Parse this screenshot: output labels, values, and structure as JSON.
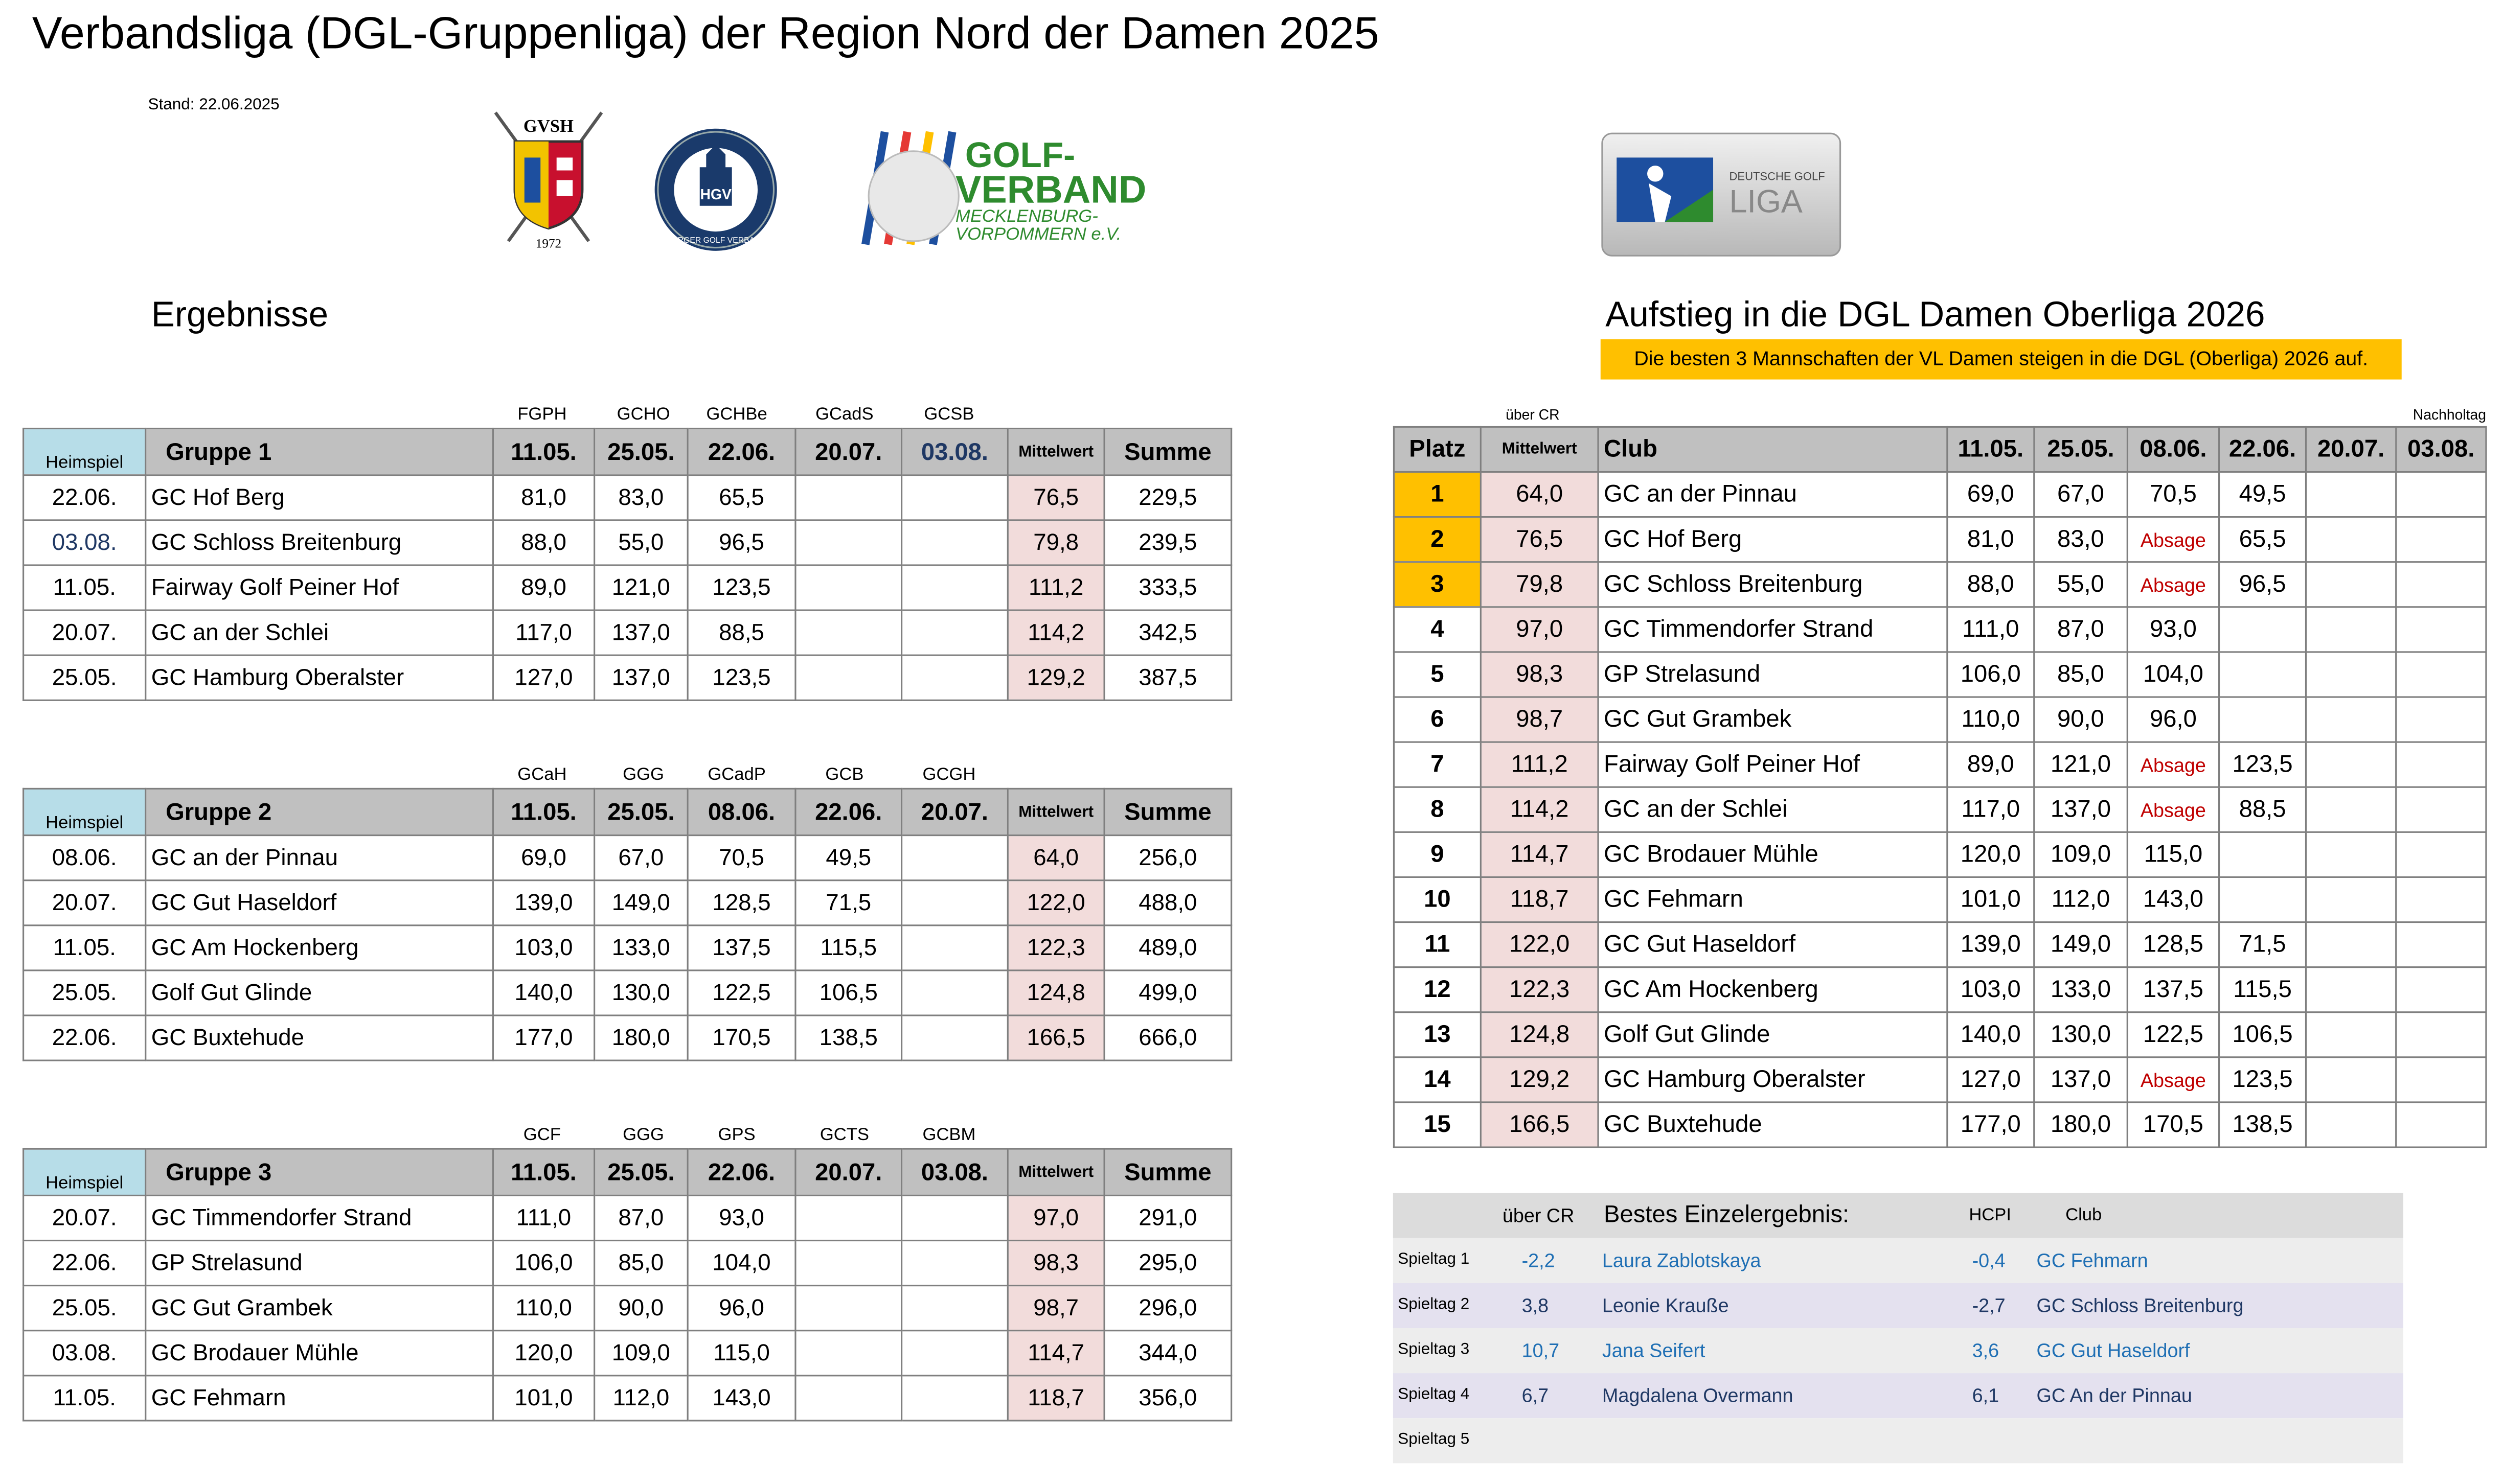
{
  "title": "Verbandsliga (DGL-Gruppenliga) der Region Nord der Damen 2025",
  "stand": "Stand: 22.06.2025",
  "logos": {
    "gvsh_text": "GVSH",
    "gvsh_year": "1972",
    "hgv_text": "HAMBURGER GOLF VERBAND E.V.",
    "hgv_mono": "HGV",
    "mv_line1": "GOLF-",
    "mv_line2": "VERBAND",
    "mv_line3": "MECKLENBURG-",
    "mv_line4": "VORPOMMERN e.V.",
    "dgl_line1": "DEUTSCHE GOLF",
    "dgl_line2": "LIGA"
  },
  "ergebnisse_title": "Ergebnisse",
  "groups": [
    {
      "codes": [
        "FGPH",
        "GCHO",
        "GCHBe",
        "GCadS",
        "GCSB"
      ],
      "header": {
        "heim": "Heimspiel",
        "name": "Gruppe 1",
        "dates": [
          "11.05.",
          "25.05.",
          "22.06.",
          "20.07.",
          "03.08."
        ],
        "mw": "Mittelwert",
        "sum": "Summe"
      },
      "rows": [
        {
          "date": "22.06.",
          "club": "GC Hof Berg",
          "v": [
            "81,0",
            "83,0",
            "65,5",
            "",
            ""
          ],
          "mw": "76,5",
          "sum": "229,5"
        },
        {
          "date": "03.08.",
          "club": "GC Schloss Breitenburg",
          "v": [
            "88,0",
            "55,0",
            "96,5",
            "",
            ""
          ],
          "mw": "79,8",
          "sum": "239,5"
        },
        {
          "date": "11.05.",
          "club": "Fairway Golf Peiner Hof",
          "v": [
            "89,0",
            "121,0",
            "123,5",
            "",
            ""
          ],
          "mw": "111,2",
          "sum": "333,5"
        },
        {
          "date": "20.07.",
          "club": "GC an der Schlei",
          "v": [
            "117,0",
            "137,0",
            "88,5",
            "",
            ""
          ],
          "mw": "114,2",
          "sum": "342,5"
        },
        {
          "date": "25.05.",
          "club": "GC Hamburg Oberalster",
          "v": [
            "127,0",
            "137,0",
            "123,5",
            "",
            ""
          ],
          "mw": "129,2",
          "sum": "387,5"
        }
      ]
    },
    {
      "codes": [
        "GCaH",
        "GGG",
        "GCadP",
        "GCB",
        "GCGH"
      ],
      "header": {
        "heim": "Heimspiel",
        "name": "Gruppe 2",
        "dates": [
          "11.05.",
          "25.05.",
          "08.06.",
          "22.06.",
          "20.07."
        ],
        "mw": "Mittelwert",
        "sum": "Summe"
      },
      "rows": [
        {
          "date": "08.06.",
          "club": "GC an der Pinnau",
          "v": [
            "69,0",
            "67,0",
            "70,5",
            "49,5",
            ""
          ],
          "mw": "64,0",
          "sum": "256,0"
        },
        {
          "date": "20.07.",
          "club": "GC Gut Haseldorf",
          "v": [
            "139,0",
            "149,0",
            "128,5",
            "71,5",
            ""
          ],
          "mw": "122,0",
          "sum": "488,0"
        },
        {
          "date": "11.05.",
          "club": "GC Am Hockenberg",
          "v": [
            "103,0",
            "133,0",
            "137,5",
            "115,5",
            ""
          ],
          "mw": "122,3",
          "sum": "489,0"
        },
        {
          "date": "25.05.",
          "club": "Golf Gut Glinde",
          "v": [
            "140,0",
            "130,0",
            "122,5",
            "106,5",
            ""
          ],
          "mw": "124,8",
          "sum": "499,0"
        },
        {
          "date": "22.06.",
          "club": "GC Buxtehude",
          "v": [
            "177,0",
            "180,0",
            "170,5",
            "138,5",
            ""
          ],
          "mw": "166,5",
          "sum": "666,0"
        }
      ]
    },
    {
      "codes": [
        "GCF",
        "GGG",
        "GPS",
        "GCTS",
        "GCBM"
      ],
      "header": {
        "heim": "Heimspiel",
        "name": "Gruppe 3",
        "dates": [
          "11.05.",
          "25.05.",
          "22.06.",
          "20.07.",
          "03.08."
        ],
        "mw": "Mittelwert",
        "sum": "Summe"
      },
      "rows": [
        {
          "date": "20.07.",
          "club": "GC Timmendorfer Strand",
          "v": [
            "111,0",
            "87,0",
            "93,0",
            "",
            ""
          ],
          "mw": "97,0",
          "sum": "291,0"
        },
        {
          "date": "22.06.",
          "club": "GP Strelasund",
          "v": [
            "106,0",
            "85,0",
            "104,0",
            "",
            ""
          ],
          "mw": "98,3",
          "sum": "295,0"
        },
        {
          "date": "25.05.",
          "club": "GC Gut Grambek",
          "v": [
            "110,0",
            "90,0",
            "96,0",
            "",
            ""
          ],
          "mw": "98,7",
          "sum": "296,0"
        },
        {
          "date": "03.08.",
          "club": "GC Brodauer Mühle",
          "v": [
            "120,0",
            "109,0",
            "115,0",
            "",
            ""
          ],
          "mw": "114,7",
          "sum": "344,0"
        },
        {
          "date": "11.05.",
          "club": "GC Fehmarn",
          "v": [
            "101,0",
            "112,0",
            "143,0",
            "",
            ""
          ],
          "mw": "118,7",
          "sum": "356,0"
        }
      ]
    }
  ],
  "aufstieg": {
    "title": "Aufstieg in die DGL Damen Oberliga 2026",
    "banner": "Die besten 3 Mannschaften der VL Damen steigen in die DGL (Oberliga) 2026 auf.",
    "ueber_cr": "über CR",
    "nachholtag": "Nachholtag",
    "header": {
      "platz": "Platz",
      "mw": "Mittelwert",
      "club": "Club",
      "dates": [
        "11.05.",
        "25.05.",
        "08.06.",
        "22.06.",
        "20.07.",
        "03.08."
      ]
    },
    "rows": [
      {
        "p": "1",
        "mw": "64,0",
        "club": "GC an der Pinnau",
        "v": [
          "69,0",
          "67,0",
          "70,5",
          "49,5",
          "",
          ""
        ]
      },
      {
        "p": "2",
        "mw": "76,5",
        "club": "GC Hof Berg",
        "v": [
          "81,0",
          "83,0",
          "Absage",
          "65,5",
          "",
          ""
        ]
      },
      {
        "p": "3",
        "mw": "79,8",
        "club": "GC Schloss Breitenburg",
        "v": [
          "88,0",
          "55,0",
          "Absage",
          "96,5",
          "",
          ""
        ]
      },
      {
        "p": "4",
        "mw": "97,0",
        "club": "GC Timmendorfer Strand",
        "v": [
          "111,0",
          "87,0",
          "93,0",
          "",
          "",
          ""
        ]
      },
      {
        "p": "5",
        "mw": "98,3",
        "club": "GP Strelasund",
        "v": [
          "106,0",
          "85,0",
          "104,0",
          "",
          "",
          ""
        ]
      },
      {
        "p": "6",
        "mw": "98,7",
        "club": "GC Gut Grambek",
        "v": [
          "110,0",
          "90,0",
          "96,0",
          "",
          "",
          ""
        ]
      },
      {
        "p": "7",
        "mw": "111,2",
        "club": "Fairway Golf Peiner Hof",
        "v": [
          "89,0",
          "121,0",
          "Absage",
          "123,5",
          "",
          ""
        ]
      },
      {
        "p": "8",
        "mw": "114,2",
        "club": "GC an der Schlei",
        "v": [
          "117,0",
          "137,0",
          "Absage",
          "88,5",
          "",
          ""
        ]
      },
      {
        "p": "9",
        "mw": "114,7",
        "club": "GC Brodauer Mühle",
        "v": [
          "120,0",
          "109,0",
          "115,0",
          "",
          "",
          ""
        ]
      },
      {
        "p": "10",
        "mw": "118,7",
        "club": "GC Fehmarn",
        "v": [
          "101,0",
          "112,0",
          "143,0",
          "",
          "",
          ""
        ]
      },
      {
        "p": "11",
        "mw": "122,0",
        "club": "GC Gut Haseldorf",
        "v": [
          "139,0",
          "149,0",
          "128,5",
          "71,5",
          "",
          ""
        ]
      },
      {
        "p": "12",
        "mw": "122,3",
        "club": "GC Am Hockenberg",
        "v": [
          "103,0",
          "133,0",
          "137,5",
          "115,5",
          "",
          ""
        ]
      },
      {
        "p": "13",
        "mw": "124,8",
        "club": "Golf Gut Glinde",
        "v": [
          "140,0",
          "130,0",
          "122,5",
          "106,5",
          "",
          ""
        ]
      },
      {
        "p": "14",
        "mw": "129,2",
        "club": "GC Hamburg Oberalster",
        "v": [
          "127,0",
          "137,0",
          "Absage",
          "123,5",
          "",
          ""
        ]
      },
      {
        "p": "15",
        "mw": "166,5",
        "club": "GC Buxtehude",
        "v": [
          "177,0",
          "180,0",
          "170,5",
          "138,5",
          "",
          ""
        ]
      }
    ]
  },
  "best": {
    "header": {
      "cr": "über CR",
      "title": "Bestes Einzelergebnis:",
      "hcpi": "HCPI",
      "club": "Club"
    },
    "rows": [
      {
        "tag": "Spieltag 1",
        "cr": "-2,2",
        "name": "Laura Zablotskaya",
        "hcpi": "-0,4",
        "club": "GC Fehmarn",
        "color": "blue"
      },
      {
        "tag": "Spieltag 2",
        "cr": "3,8",
        "name": "Leonie Kraußе",
        "hcpi": "-2,7",
        "club": "GC Schloss Breitenburg",
        "color": "dark"
      },
      {
        "tag": "Spieltag 3",
        "cr": "10,7",
        "name": "Jana Seifert",
        "hcpi": "3,6",
        "club": "GC Gut Haseldorf",
        "color": "blue"
      },
      {
        "tag": "Spieltag 4",
        "cr": "6,7",
        "name": "Magdalena Overmann",
        "hcpi": "6,1",
        "club": "GC An der Pinnau",
        "color": "dark"
      },
      {
        "tag": "Spieltag 5",
        "cr": "",
        "name": "",
        "hcpi": "",
        "club": "",
        "color": "dark"
      }
    ]
  },
  "colors": {
    "gold": "#ffc000",
    "pink": "#f2dcdb",
    "header_gray": "#c0c0c0",
    "heim_blue": "#b7dde8",
    "absage_red": "#c00000"
  }
}
